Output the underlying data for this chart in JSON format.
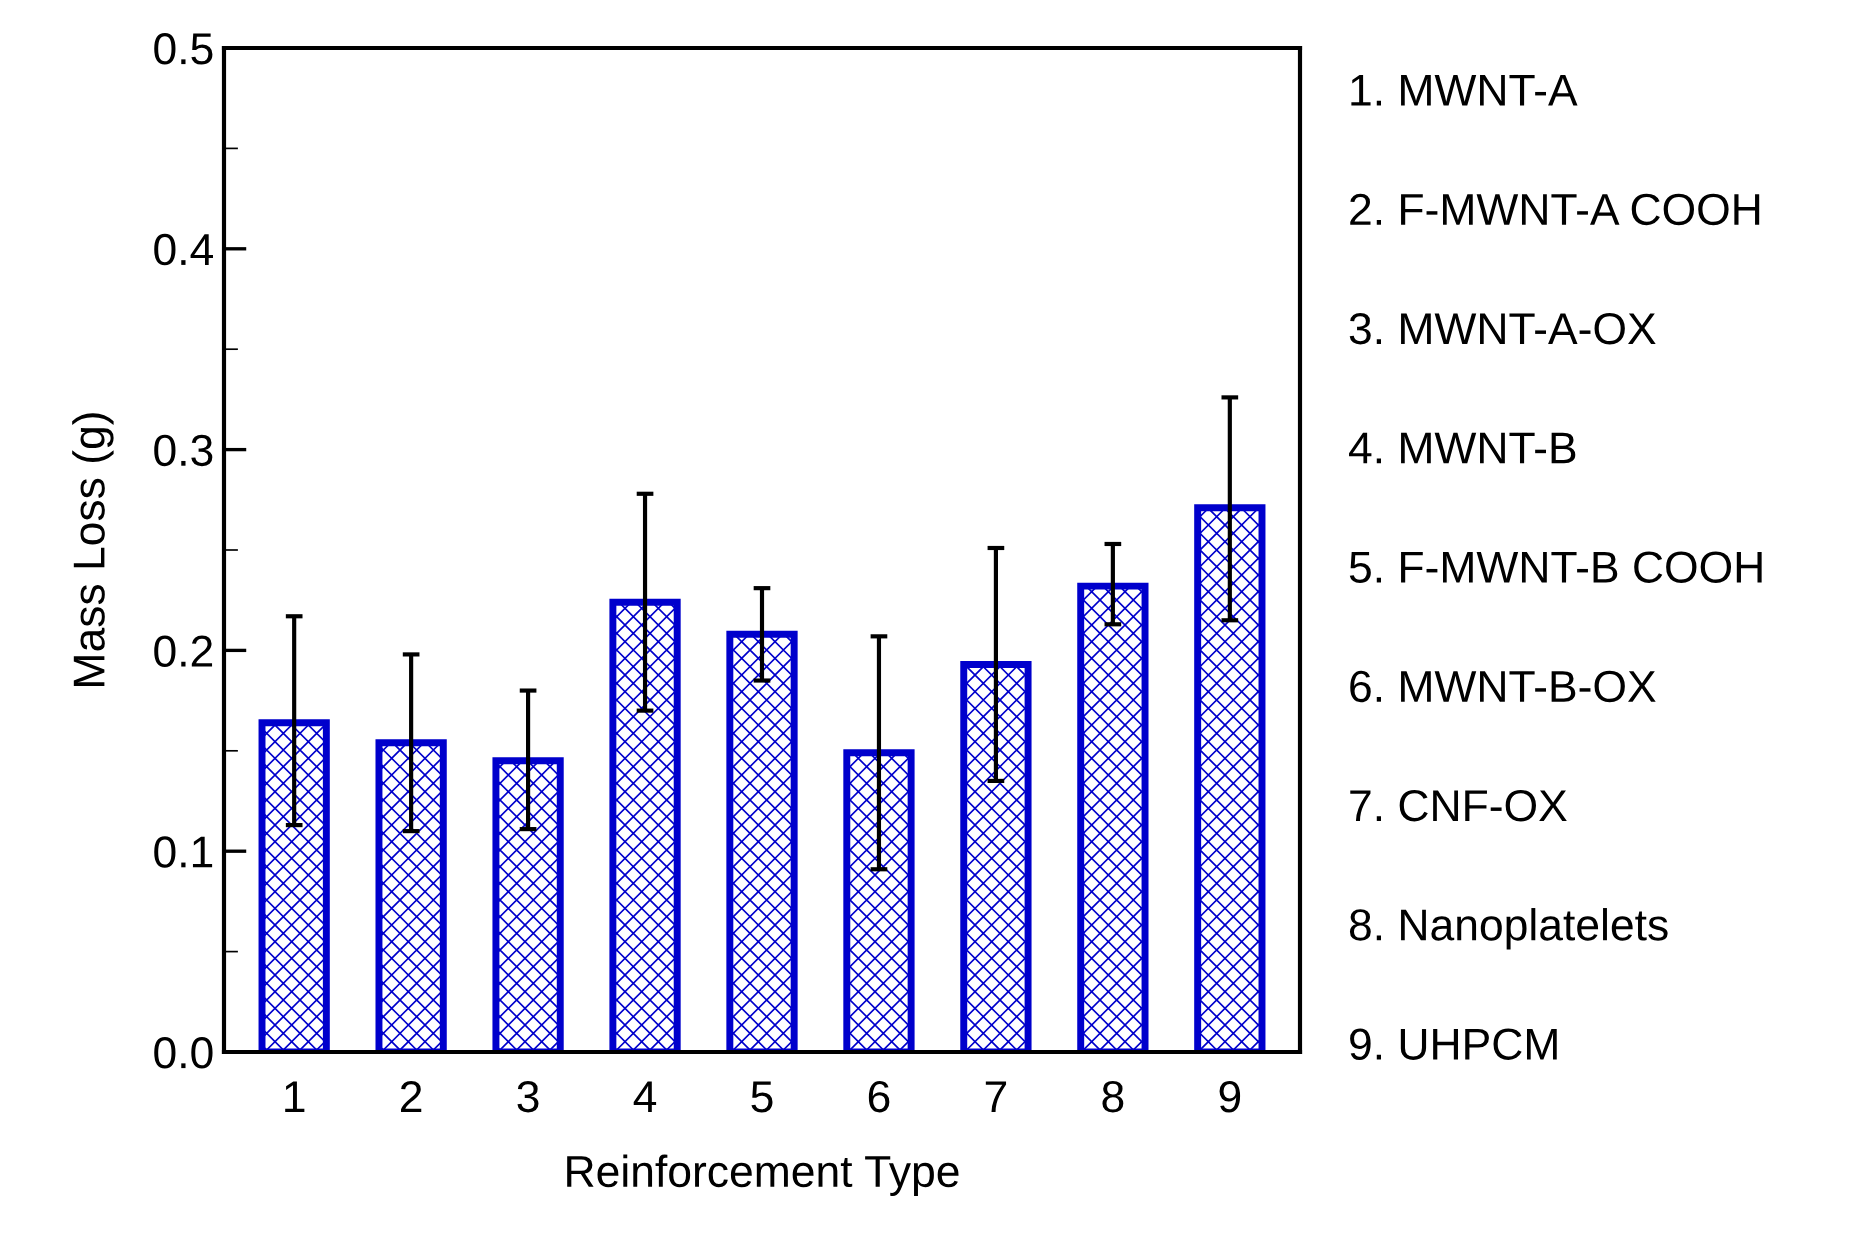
{
  "chart_data": {
    "type": "bar",
    "xlabel": "Reinforcement Type",
    "ylabel": "Mass Loss (g)",
    "categories": [
      "1",
      "2",
      "3",
      "4",
      "5",
      "6",
      "7",
      "8",
      "9"
    ],
    "values": [
      0.164,
      0.154,
      0.145,
      0.224,
      0.208,
      0.149,
      0.193,
      0.232,
      0.271
    ],
    "errors": [
      [
        0.113,
        0.217
      ],
      [
        0.11,
        0.198
      ],
      [
        0.111,
        0.18
      ],
      [
        0.17,
        0.278
      ],
      [
        0.185,
        0.231
      ],
      [
        0.091,
        0.207
      ],
      [
        0.135,
        0.251
      ],
      [
        0.213,
        0.253
      ],
      [
        0.215,
        0.326
      ]
    ],
    "color": "#0000cc",
    "ylim": [
      0,
      0.5
    ],
    "yticks": [
      {
        "value": 0,
        "label": "0.0"
      },
      0.1,
      0.2,
      0.3,
      0.4,
      0.5
    ],
    "grid": false,
    "annotations": [
      "1. MWNT-A",
      "2. F-MWNT-A COOH",
      "3. MWNT-A-OX",
      "4. MWNT-B",
      "5. F-MWNT-B COOH",
      "6. MWNT-B-OX",
      "7. CNF-OX",
      "8. Nanoplatelets",
      "9. UHPCM"
    ]
  }
}
